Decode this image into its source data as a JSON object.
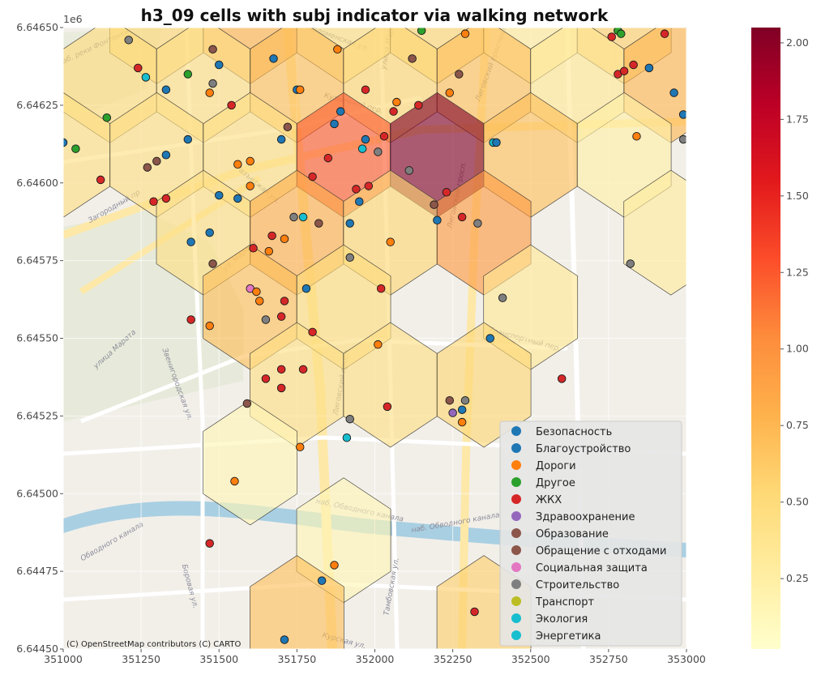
{
  "chart_data": {
    "type": "scatter",
    "title": "h3_09 cells with subj indicator via walking network",
    "x_ticks": [
      "351000",
      "351250",
      "351500",
      "351750",
      "352000",
      "352250",
      "352500",
      "352750",
      "353000"
    ],
    "x_tick_values": [
      351000,
      351250,
      351500,
      351750,
      352000,
      352250,
      352500,
      352750,
      353000
    ],
    "y_ticks": [
      "6.64450",
      "6.64475",
      "6.64500",
      "6.64525",
      "6.64550",
      "6.64575",
      "6.64600",
      "6.64625",
      "6.64650"
    ],
    "y_tick_values": [
      6644500,
      6644750,
      6645000,
      6645250,
      6645500,
      6645750,
      6646000,
      6646250,
      6646500
    ],
    "y_offset_label": "1e6",
    "xlim": [
      351000,
      353000
    ],
    "ylim": [
      6644500,
      6646500
    ],
    "grid": true,
    "colorbar": {
      "min": 0.02,
      "max": 2.05,
      "ticks": [
        "0.25",
        "0.50",
        "0.75",
        "1.00",
        "1.25",
        "1.50",
        "1.75",
        "2.00"
      ],
      "tick_values": [
        0.25,
        0.5,
        0.75,
        1.0,
        1.25,
        1.5,
        1.75,
        2.0
      ],
      "colormap": "YlOrRd",
      "stops": [
        "#ffffcc",
        "#ffeda0",
        "#fed976",
        "#feb24c",
        "#fd8d3c",
        "#fc4e2a",
        "#e31a1c",
        "#bd0026",
        "#800026"
      ]
    },
    "hex_cells": [
      {
        "x": 351300,
        "y": 6646520,
        "value": 0.55
      },
      {
        "x": 351600,
        "y": 6646520,
        "value": 0.78
      },
      {
        "x": 351900,
        "y": 6646520,
        "value": 0.45
      },
      {
        "x": 352200,
        "y": 6646520,
        "value": 0.55
      },
      {
        "x": 352500,
        "y": 6646520,
        "value": 0.3
      },
      {
        "x": 352800,
        "y": 6646520,
        "value": 0.6
      },
      {
        "x": 351150,
        "y": 6646330,
        "value": 0.5
      },
      {
        "x": 351450,
        "y": 6646330,
        "value": 0.45
      },
      {
        "x": 351750,
        "y": 6646330,
        "value": 0.7
      },
      {
        "x": 352050,
        "y": 6646330,
        "value": 0.55
      },
      {
        "x": 352350,
        "y": 6646330,
        "value": 0.7
      },
      {
        "x": 352650,
        "y": 6646330,
        "value": 0.35
      },
      {
        "x": 352950,
        "y": 6646330,
        "value": 0.75
      },
      {
        "x": 351000,
        "y": 6646090,
        "value": 0.45
      },
      {
        "x": 351300,
        "y": 6646090,
        "value": 0.45
      },
      {
        "x": 351600,
        "y": 6646090,
        "value": 0.45
      },
      {
        "x": 351900,
        "y": 6646090,
        "value": 1.25
      },
      {
        "x": 352200,
        "y": 6646090,
        "value": 2.05
      },
      {
        "x": 352500,
        "y": 6646090,
        "value": 0.7
      },
      {
        "x": 352800,
        "y": 6646090,
        "value": 0.25
      },
      {
        "x": 351450,
        "y": 6645840,
        "value": 0.45
      },
      {
        "x": 351750,
        "y": 6645840,
        "value": 0.8
      },
      {
        "x": 352050,
        "y": 6645840,
        "value": 0.55
      },
      {
        "x": 352350,
        "y": 6645840,
        "value": 0.95
      },
      {
        "x": 352950,
        "y": 6645840,
        "value": 0.3
      },
      {
        "x": 351600,
        "y": 6645600,
        "value": 0.7
      },
      {
        "x": 351900,
        "y": 6645600,
        "value": 0.5
      },
      {
        "x": 352500,
        "y": 6645600,
        "value": 0.35
      },
      {
        "x": 351750,
        "y": 6645350,
        "value": 0.45
      },
      {
        "x": 352050,
        "y": 6645350,
        "value": 0.45
      },
      {
        "x": 352350,
        "y": 6645350,
        "value": 0.55
      },
      {
        "x": 351600,
        "y": 6645100,
        "value": 0.15
      },
      {
        "x": 351900,
        "y": 6644850,
        "value": 0.15
      },
      {
        "x": 351750,
        "y": 6644600,
        "value": 0.7
      },
      {
        "x": 352350,
        "y": 6644600,
        "value": 0.6
      }
    ],
    "categories": [
      {
        "name": "Безопасность",
        "color": "#1f77b4"
      },
      {
        "name": "Благоустройство",
        "color": "#1f77b4"
      },
      {
        "name": "Дороги",
        "color": "#ff7f0e"
      },
      {
        "name": "Другое",
        "color": "#2ca02c"
      },
      {
        "name": "ЖКХ",
        "color": "#d62728"
      },
      {
        "name": "Здравоохранение",
        "color": "#9467bd"
      },
      {
        "name": "Образование",
        "color": "#8c564b"
      },
      {
        "name": "Обращение с отходами",
        "color": "#8c564b"
      },
      {
        "name": "Социальная защита",
        "color": "#e377c2"
      },
      {
        "name": "Строительство",
        "color": "#7f7f7f"
      },
      {
        "name": "Транспорт",
        "color": "#bcbd22"
      },
      {
        "name": "Экология",
        "color": "#17becf"
      },
      {
        "name": "Энергетика",
        "color": "#17becf"
      }
    ],
    "points": [
      {
        "x": 351210,
        "y": 6646460,
        "c": 9
      },
      {
        "x": 351240,
        "y": 6646370,
        "c": 4
      },
      {
        "x": 351265,
        "y": 6646340,
        "c": 11
      },
      {
        "x": 351330,
        "y": 6646300,
        "c": 1
      },
      {
        "x": 351400,
        "y": 6646350,
        "c": 3
      },
      {
        "x": 351470,
        "y": 6646290,
        "c": 2
      },
      {
        "x": 351500,
        "y": 6646380,
        "c": 1
      },
      {
        "x": 351480,
        "y": 6646320,
        "c": 9
      },
      {
        "x": 351480,
        "y": 6646430,
        "c": 6
      },
      {
        "x": 351540,
        "y": 6646250,
        "c": 4
      },
      {
        "x": 351675,
        "y": 6646400,
        "c": 1
      },
      {
        "x": 351750,
        "y": 6646300,
        "c": 1
      },
      {
        "x": 351760,
        "y": 6646300,
        "c": 2
      },
      {
        "x": 351880,
        "y": 6646430,
        "c": 2
      },
      {
        "x": 351970,
        "y": 6646300,
        "c": 4
      },
      {
        "x": 352070,
        "y": 6646260,
        "c": 2
      },
      {
        "x": 352060,
        "y": 6646230,
        "c": 4
      },
      {
        "x": 352120,
        "y": 6646400,
        "c": 6
      },
      {
        "x": 352140,
        "y": 6646250,
        "c": 4
      },
      {
        "x": 352150,
        "y": 6646490,
        "c": 3
      },
      {
        "x": 352240,
        "y": 6646290,
        "c": 2
      },
      {
        "x": 352270,
        "y": 6646350,
        "c": 6
      },
      {
        "x": 352290,
        "y": 6646480,
        "c": 2
      },
      {
        "x": 352760,
        "y": 6646470,
        "c": 4
      },
      {
        "x": 352780,
        "y": 6646350,
        "c": 4
      },
      {
        "x": 352780,
        "y": 6646490,
        "c": 3
      },
      {
        "x": 352790,
        "y": 6646480,
        "c": 3
      },
      {
        "x": 352800,
        "y": 6646360,
        "c": 4
      },
      {
        "x": 352830,
        "y": 6646380,
        "c": 4
      },
      {
        "x": 352880,
        "y": 6646370,
        "c": 1
      },
      {
        "x": 352930,
        "y": 6646480,
        "c": 4
      },
      {
        "x": 352960,
        "y": 6646290,
        "c": 1
      },
      {
        "x": 352990,
        "y": 6646220,
        "c": 1
      },
      {
        "x": 351140,
        "y": 6646210,
        "c": 3
      },
      {
        "x": 351040,
        "y": 6646110,
        "c": 3
      },
      {
        "x": 351000,
        "y": 6646130,
        "c": 1
      },
      {
        "x": 351120,
        "y": 6646010,
        "c": 4
      },
      {
        "x": 351270,
        "y": 6646050,
        "c": 6
      },
      {
        "x": 351300,
        "y": 6646070,
        "c": 6
      },
      {
        "x": 351330,
        "y": 6646090,
        "c": 1
      },
      {
        "x": 351400,
        "y": 6646140,
        "c": 1
      },
      {
        "x": 351290,
        "y": 6645940,
        "c": 4
      },
      {
        "x": 351330,
        "y": 6645950,
        "c": 4
      },
      {
        "x": 351500,
        "y": 6645960,
        "c": 1
      },
      {
        "x": 351560,
        "y": 6646060,
        "c": 2
      },
      {
        "x": 351600,
        "y": 6646070,
        "c": 2
      },
      {
        "x": 351600,
        "y": 6645990,
        "c": 2
      },
      {
        "x": 351560,
        "y": 6645950,
        "c": 1
      },
      {
        "x": 351700,
        "y": 6646140,
        "c": 1
      },
      {
        "x": 351720,
        "y": 6646180,
        "c": 6
      },
      {
        "x": 351800,
        "y": 6646020,
        "c": 4
      },
      {
        "x": 351850,
        "y": 6646080,
        "c": 4
      },
      {
        "x": 351870,
        "y": 6646190,
        "c": 1
      },
      {
        "x": 351890,
        "y": 6646230,
        "c": 1
      },
      {
        "x": 351940,
        "y": 6645980,
        "c": 4
      },
      {
        "x": 351960,
        "y": 6646110,
        "c": 11
      },
      {
        "x": 351970,
        "y": 6646140,
        "c": 1
      },
      {
        "x": 351980,
        "y": 6645990,
        "c": 4
      },
      {
        "x": 352010,
        "y": 6646100,
        "c": 9
      },
      {
        "x": 352030,
        "y": 6646150,
        "c": 4
      },
      {
        "x": 352110,
        "y": 6646040,
        "c": 9
      },
      {
        "x": 352230,
        "y": 6645970,
        "c": 4
      },
      {
        "x": 352380,
        "y": 6646130,
        "c": 12
      },
      {
        "x": 352390,
        "y": 6646130,
        "c": 1
      },
      {
        "x": 352840,
        "y": 6646150,
        "c": 2
      },
      {
        "x": 352990,
        "y": 6646140,
        "c": 9
      },
      {
        "x": 351410,
        "y": 6645810,
        "c": 1
      },
      {
        "x": 351470,
        "y": 6645840,
        "c": 1
      },
      {
        "x": 351480,
        "y": 6645740,
        "c": 6
      },
      {
        "x": 351610,
        "y": 6645790,
        "c": 4
      },
      {
        "x": 351660,
        "y": 6645780,
        "c": 2
      },
      {
        "x": 351670,
        "y": 6645830,
        "c": 4
      },
      {
        "x": 351710,
        "y": 6645820,
        "c": 2
      },
      {
        "x": 351740,
        "y": 6645890,
        "c": 9
      },
      {
        "x": 351770,
        "y": 6645890,
        "c": 11
      },
      {
        "x": 351820,
        "y": 6645870,
        "c": 6
      },
      {
        "x": 351920,
        "y": 6645870,
        "c": 1
      },
      {
        "x": 351950,
        "y": 6645940,
        "c": 1
      },
      {
        "x": 351920,
        "y": 6645760,
        "c": 9
      },
      {
        "x": 352050,
        "y": 6645810,
        "c": 2
      },
      {
        "x": 352190,
        "y": 6645930,
        "c": 6
      },
      {
        "x": 352200,
        "y": 6645880,
        "c": 1
      },
      {
        "x": 352280,
        "y": 6645890,
        "c": 4
      },
      {
        "x": 352330,
        "y": 6645870,
        "c": 9
      },
      {
        "x": 352410,
        "y": 6645630,
        "c": 9
      },
      {
        "x": 352820,
        "y": 6645740,
        "c": 9
      },
      {
        "x": 351600,
        "y": 6645660,
        "c": 8
      },
      {
        "x": 351620,
        "y": 6645650,
        "c": 2
      },
      {
        "x": 351630,
        "y": 6645620,
        "c": 2
      },
      {
        "x": 351700,
        "y": 6645570,
        "c": 4
      },
      {
        "x": 351710,
        "y": 6645620,
        "c": 4
      },
      {
        "x": 351780,
        "y": 6645660,
        "c": 1
      },
      {
        "x": 351650,
        "y": 6645560,
        "c": 9
      },
      {
        "x": 351410,
        "y": 6645560,
        "c": 4
      },
      {
        "x": 351470,
        "y": 6645540,
        "c": 2
      },
      {
        "x": 351800,
        "y": 6645520,
        "c": 4
      },
      {
        "x": 352010,
        "y": 6645480,
        "c": 2
      },
      {
        "x": 352020,
        "y": 6645660,
        "c": 4
      },
      {
        "x": 352370,
        "y": 6645500,
        "c": 1
      },
      {
        "x": 351650,
        "y": 6645370,
        "c": 4
      },
      {
        "x": 351700,
        "y": 6645400,
        "c": 4
      },
      {
        "x": 351700,
        "y": 6645340,
        "c": 4
      },
      {
        "x": 351770,
        "y": 6645400,
        "c": 4
      },
      {
        "x": 351590,
        "y": 6645290,
        "c": 6
      },
      {
        "x": 351920,
        "y": 6645240,
        "c": 9
      },
      {
        "x": 352040,
        "y": 6645280,
        "c": 4
      },
      {
        "x": 352240,
        "y": 6645300,
        "c": 6
      },
      {
        "x": 352250,
        "y": 6645260,
        "c": 5
      },
      {
        "x": 352280,
        "y": 6645270,
        "c": 1
      },
      {
        "x": 352290,
        "y": 6645300,
        "c": 9
      },
      {
        "x": 352280,
        "y": 6645230,
        "c": 2
      },
      {
        "x": 352600,
        "y": 6645370,
        "c": 4
      },
      {
        "x": 351760,
        "y": 6645150,
        "c": 2
      },
      {
        "x": 351910,
        "y": 6645180,
        "c": 11
      },
      {
        "x": 351550,
        "y": 6645040,
        "c": 2
      },
      {
        "x": 351470,
        "y": 6644840,
        "c": 4
      },
      {
        "x": 351870,
        "y": 6644770,
        "c": 2
      },
      {
        "x": 351830,
        "y": 6644720,
        "c": 1
      },
      {
        "x": 352320,
        "y": 6644620,
        "c": 4
      },
      {
        "x": 351710,
        "y": 6644530,
        "c": 1
      }
    ],
    "attribution": "(C) OpenStreetMap contributors (C) CARTO",
    "map_labels": [
      {
        "text": "ул. Марата",
        "x": 351570,
        "y": 6645760,
        "rot": -42
      },
      {
        "text": "улица Марата",
        "x": 351170,
        "y": 6645460,
        "rot": -42
      },
      {
        "text": "Загородный пр.",
        "x": 351170,
        "y": 6645920,
        "rot": -30
      },
      {
        "text": "Звенигородская ул.",
        "x": 351360,
        "y": 6645350,
        "rot": 70
      },
      {
        "text": "Лиговский просп.",
        "x": 352270,
        "y": 6645960,
        "rot": -78
      },
      {
        "text": "Лиговский проспект",
        "x": 352380,
        "y": 6646380,
        "rot": -70
      },
      {
        "text": "Лиговский просп.",
        "x": 351900,
        "y": 6645360,
        "rot": -80
      },
      {
        "text": "Транспортный пер.",
        "x": 352480,
        "y": 6645490,
        "rot": 15
      },
      {
        "text": "наб. Обводного канала",
        "x": 351950,
        "y": 6644940,
        "rot": 12
      },
      {
        "text": "наб. Обводного канала",
        "x": 352260,
        "y": 6644900,
        "rot": -10
      },
      {
        "text": "Обводного канала",
        "x": 351160,
        "y": 6644840,
        "rot": -30
      },
      {
        "text": "Тамбовская ул.",
        "x": 352060,
        "y": 6644700,
        "rot": -80
      },
      {
        "text": "Боровая ул.",
        "x": 351400,
        "y": 6644700,
        "rot": 75
      },
      {
        "text": "Курская ул.",
        "x": 351900,
        "y": 6644520,
        "rot": 15
      },
      {
        "text": "Разъезжая ул.",
        "x": 351620,
        "y": 6645990,
        "rot": 40
      },
      {
        "text": "улица Марата",
        "x": 352050,
        "y": 6646450,
        "rot": -80
      },
      {
        "text": "Кузнечный пер.",
        "x": 351930,
        "y": 6646250,
        "rot": 15
      },
      {
        "text": "наб. реки Фонтанки",
        "x": 351100,
        "y": 6646430,
        "rot": -25
      },
      {
        "text": "Коломенская ул.",
        "x": 351880,
        "y": 6646460,
        "rot": 20
      }
    ]
  }
}
